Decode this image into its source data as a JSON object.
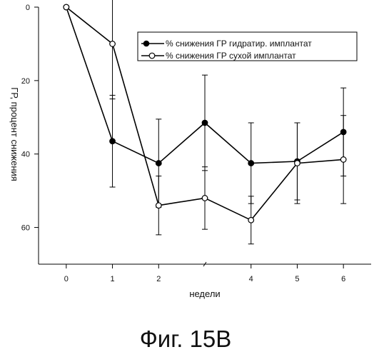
{
  "chart_data": {
    "type": "line",
    "xlabel": "недели",
    "ylabel": "ГР, процент снижения",
    "x_ticks": [
      "0",
      "1",
      "2",
      "4",
      "5",
      "6"
    ],
    "y_ticks": [
      "0",
      "20",
      "40",
      "60"
    ],
    "xlim": [
      -0.6,
      6.6
    ],
    "ylim": [
      0,
      70
    ],
    "y_inverted": true,
    "x_break_at": 3,
    "legend_position": "top-right",
    "series": [
      {
        "name": "% снижения ГР гидратир. имплантат",
        "marker": "filled-circle",
        "color": "#000000",
        "x": [
          0,
          1,
          2,
          3,
          4,
          5,
          6
        ],
        "y": [
          0,
          36.5,
          42.5,
          31.5,
          42.5,
          42,
          34
        ],
        "err": [
          0,
          12.5,
          12,
          13,
          11,
          10.5,
          12
        ]
      },
      {
        "name": "% снижения ГР сухой имплантат",
        "marker": "open-circle",
        "color": "#000000",
        "x": [
          0,
          1,
          2,
          3,
          4,
          5,
          6
        ],
        "y": [
          0,
          10,
          54,
          52,
          58,
          42.5,
          41.5
        ],
        "err": [
          0,
          15,
          8,
          8.5,
          6.5,
          11,
          12
        ]
      }
    ]
  },
  "figure": {
    "caption": "Фиг. 15В"
  }
}
